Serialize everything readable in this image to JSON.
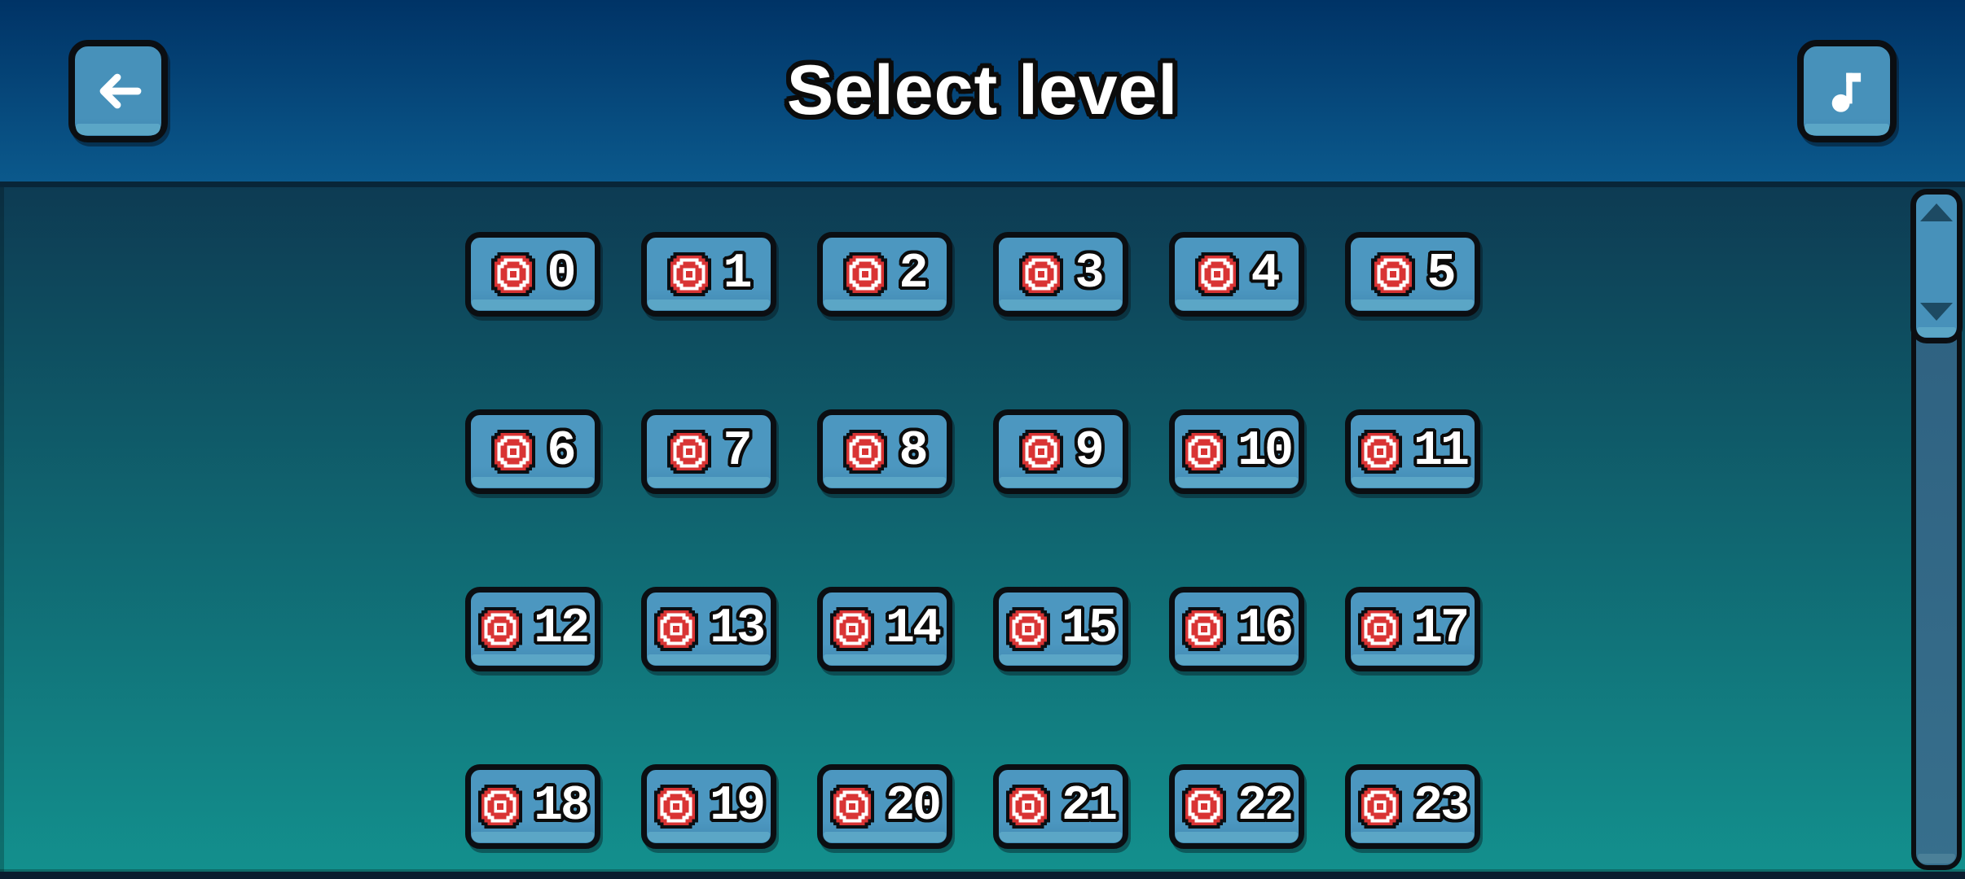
{
  "header": {
    "title": "Select level",
    "back_icon": "left-arrow",
    "music_icon": "music-note"
  },
  "level_grid": {
    "level_icon": "target",
    "levels": [
      "0",
      "1",
      "2",
      "3",
      "4",
      "5",
      "6",
      "7",
      "8",
      "9",
      "10",
      "11",
      "12",
      "13",
      "14",
      "15",
      "16",
      "17",
      "18",
      "19",
      "20",
      "21",
      "22",
      "23"
    ]
  },
  "scrollbar": {
    "up_icon": "triangle-up",
    "down_icon": "triangle-down"
  },
  "colors": {
    "header_top": "#003366",
    "header_bottom": "#0b598c",
    "content_top": "#0d3b53",
    "content_bottom": "#13918e",
    "button_fill": "#4791ba",
    "button_lip": "#5ba6c6",
    "outline": "#0b0e12",
    "icon_red": "#d93434",
    "scroll_track": "#316887",
    "scroll_track_lip": "#4b8098",
    "scroll_arrow": "#1d4a63"
  }
}
